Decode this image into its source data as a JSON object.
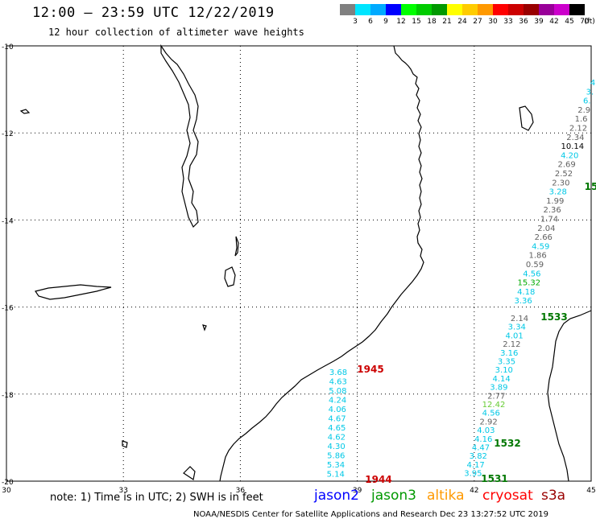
{
  "header": {
    "title": "12:00 – 23:59 UTC 12/22/2019",
    "subtitle": "12 hour collection of altimeter wave heights"
  },
  "legend": {
    "unit": "(ft)",
    "colors": [
      "#808080",
      "#00e5ff",
      "#00aaff",
      "#0000ff",
      "#00ff00",
      "#00cc00",
      "#009900",
      "#ffff00",
      "#ffcc00",
      "#ff9900",
      "#ff0000",
      "#cc0000",
      "#990000",
      "#990099",
      "#cc00cc",
      "#000000"
    ],
    "labels": [
      "3",
      "6",
      "9",
      "12",
      "15",
      "18",
      "21",
      "24",
      "27",
      "30",
      "33",
      "36",
      "39",
      "42",
      "45",
      "70"
    ]
  },
  "map": {
    "lon_ticks": [
      "30",
      "33",
      "36",
      "39",
      "42",
      "45"
    ],
    "lat_ticks": [
      "-10",
      "-12",
      "-14",
      "-16",
      "-18",
      "-20"
    ],
    "lon_range": [
      30,
      45
    ],
    "lat_range": [
      -10,
      -20
    ],
    "grid": "dotted"
  },
  "passes": [
    {
      "label": "1945",
      "color": "#cc0000"
    },
    {
      "label": "1944",
      "color": "#cc0000"
    },
    {
      "label": "1533",
      "color": "#007700"
    },
    {
      "label": "1532",
      "color": "#007700"
    },
    {
      "label": "1531",
      "color": "#007700"
    },
    {
      "label": "15",
      "color": "#007700"
    }
  ],
  "tracks": {
    "track_39": {
      "values": [
        "3.68",
        "4.63",
        "5.08",
        "4.24",
        "4.06",
        "4.67",
        "4.65",
        "4.62",
        "4.30",
        "5.86",
        "5.34",
        "5.14"
      ],
      "color": "#00c8e6"
    },
    "track_42": {
      "values": [
        {
          "v": "2.14",
          "c": "#606060"
        },
        {
          "v": "3.34",
          "c": "#00c8e6"
        },
        {
          "v": "4.01",
          "c": "#00c8e6"
        },
        {
          "v": "2.12",
          "c": "#606060"
        },
        {
          "v": "3.16",
          "c": "#00c8e6"
        },
        {
          "v": "3.35",
          "c": "#00c8e6"
        },
        {
          "v": "3.10",
          "c": "#00c8e6"
        },
        {
          "v": "4.14",
          "c": "#00c8e6"
        },
        {
          "v": "3.89",
          "c": "#00c8e6"
        },
        {
          "v": "2.77",
          "c": "#606060"
        },
        {
          "v": "12.42",
          "c": "#66cc33"
        },
        {
          "v": "4.56",
          "c": "#00c8e6"
        },
        {
          "v": "2.92",
          "c": "#606060"
        },
        {
          "v": "4.03",
          "c": "#00c8e6"
        },
        {
          "v": "4.16",
          "c": "#00c8e6"
        },
        {
          "v": "4.47",
          "c": "#00c8e6"
        },
        {
          "v": "3.82",
          "c": "#00c8e6"
        },
        {
          "v": "4.17",
          "c": "#00c8e6"
        },
        {
          "v": "3.95",
          "c": "#00c8e6"
        }
      ]
    },
    "track_44": {
      "values": [
        {
          "v": "4",
          "c": "#00c8e6"
        },
        {
          "v": "3.",
          "c": "#00c8e6"
        },
        {
          "v": "6.",
          "c": "#00c8e6"
        },
        {
          "v": "2.9",
          "c": "#606060"
        },
        {
          "v": "1.6",
          "c": "#606060"
        },
        {
          "v": "2.12",
          "c": "#606060"
        },
        {
          "v": "2.34",
          "c": "#606060"
        },
        {
          "v": "10.14",
          "c": "#000000"
        },
        {
          "v": "4.20",
          "c": "#00c8e6"
        },
        {
          "v": "2.69",
          "c": "#606060"
        },
        {
          "v": "2.52",
          "c": "#606060"
        },
        {
          "v": "2.30",
          "c": "#606060"
        },
        {
          "v": "3.28",
          "c": "#00c8e6"
        },
        {
          "v": "1.99",
          "c": "#606060"
        },
        {
          "v": "2.36",
          "c": "#606060"
        },
        {
          "v": "1.74",
          "c": "#606060"
        },
        {
          "v": "2.04",
          "c": "#606060"
        },
        {
          "v": "2.66",
          "c": "#606060"
        },
        {
          "v": "4.59",
          "c": "#00c8e6"
        },
        {
          "v": "1.86",
          "c": "#606060"
        },
        {
          "v": "0.59",
          "c": "#606060"
        },
        {
          "v": "4.56",
          "c": "#00c8e6"
        },
        {
          "v": "15.32",
          "c": "#00aa00"
        },
        {
          "v": "4.18",
          "c": "#00c8e6"
        },
        {
          "v": "3.36",
          "c": "#00c8e6"
        }
      ]
    }
  },
  "footer": {
    "note": "note:  1) Time is in UTC;  2) SWH is in feet",
    "satellites": [
      {
        "name": "jason2",
        "color": "#0000ff"
      },
      {
        "name": "jason3",
        "color": "#009900"
      },
      {
        "name": "altika",
        "color": "#ff9900"
      },
      {
        "name": "cryosat",
        "color": "#ff0000"
      },
      {
        "name": "s3a",
        "color": "#990000"
      }
    ],
    "credit": "NOAA/NESDIS Center for Satellite Applications and Research     Dec 23 13:27:52 UTC 2019"
  }
}
